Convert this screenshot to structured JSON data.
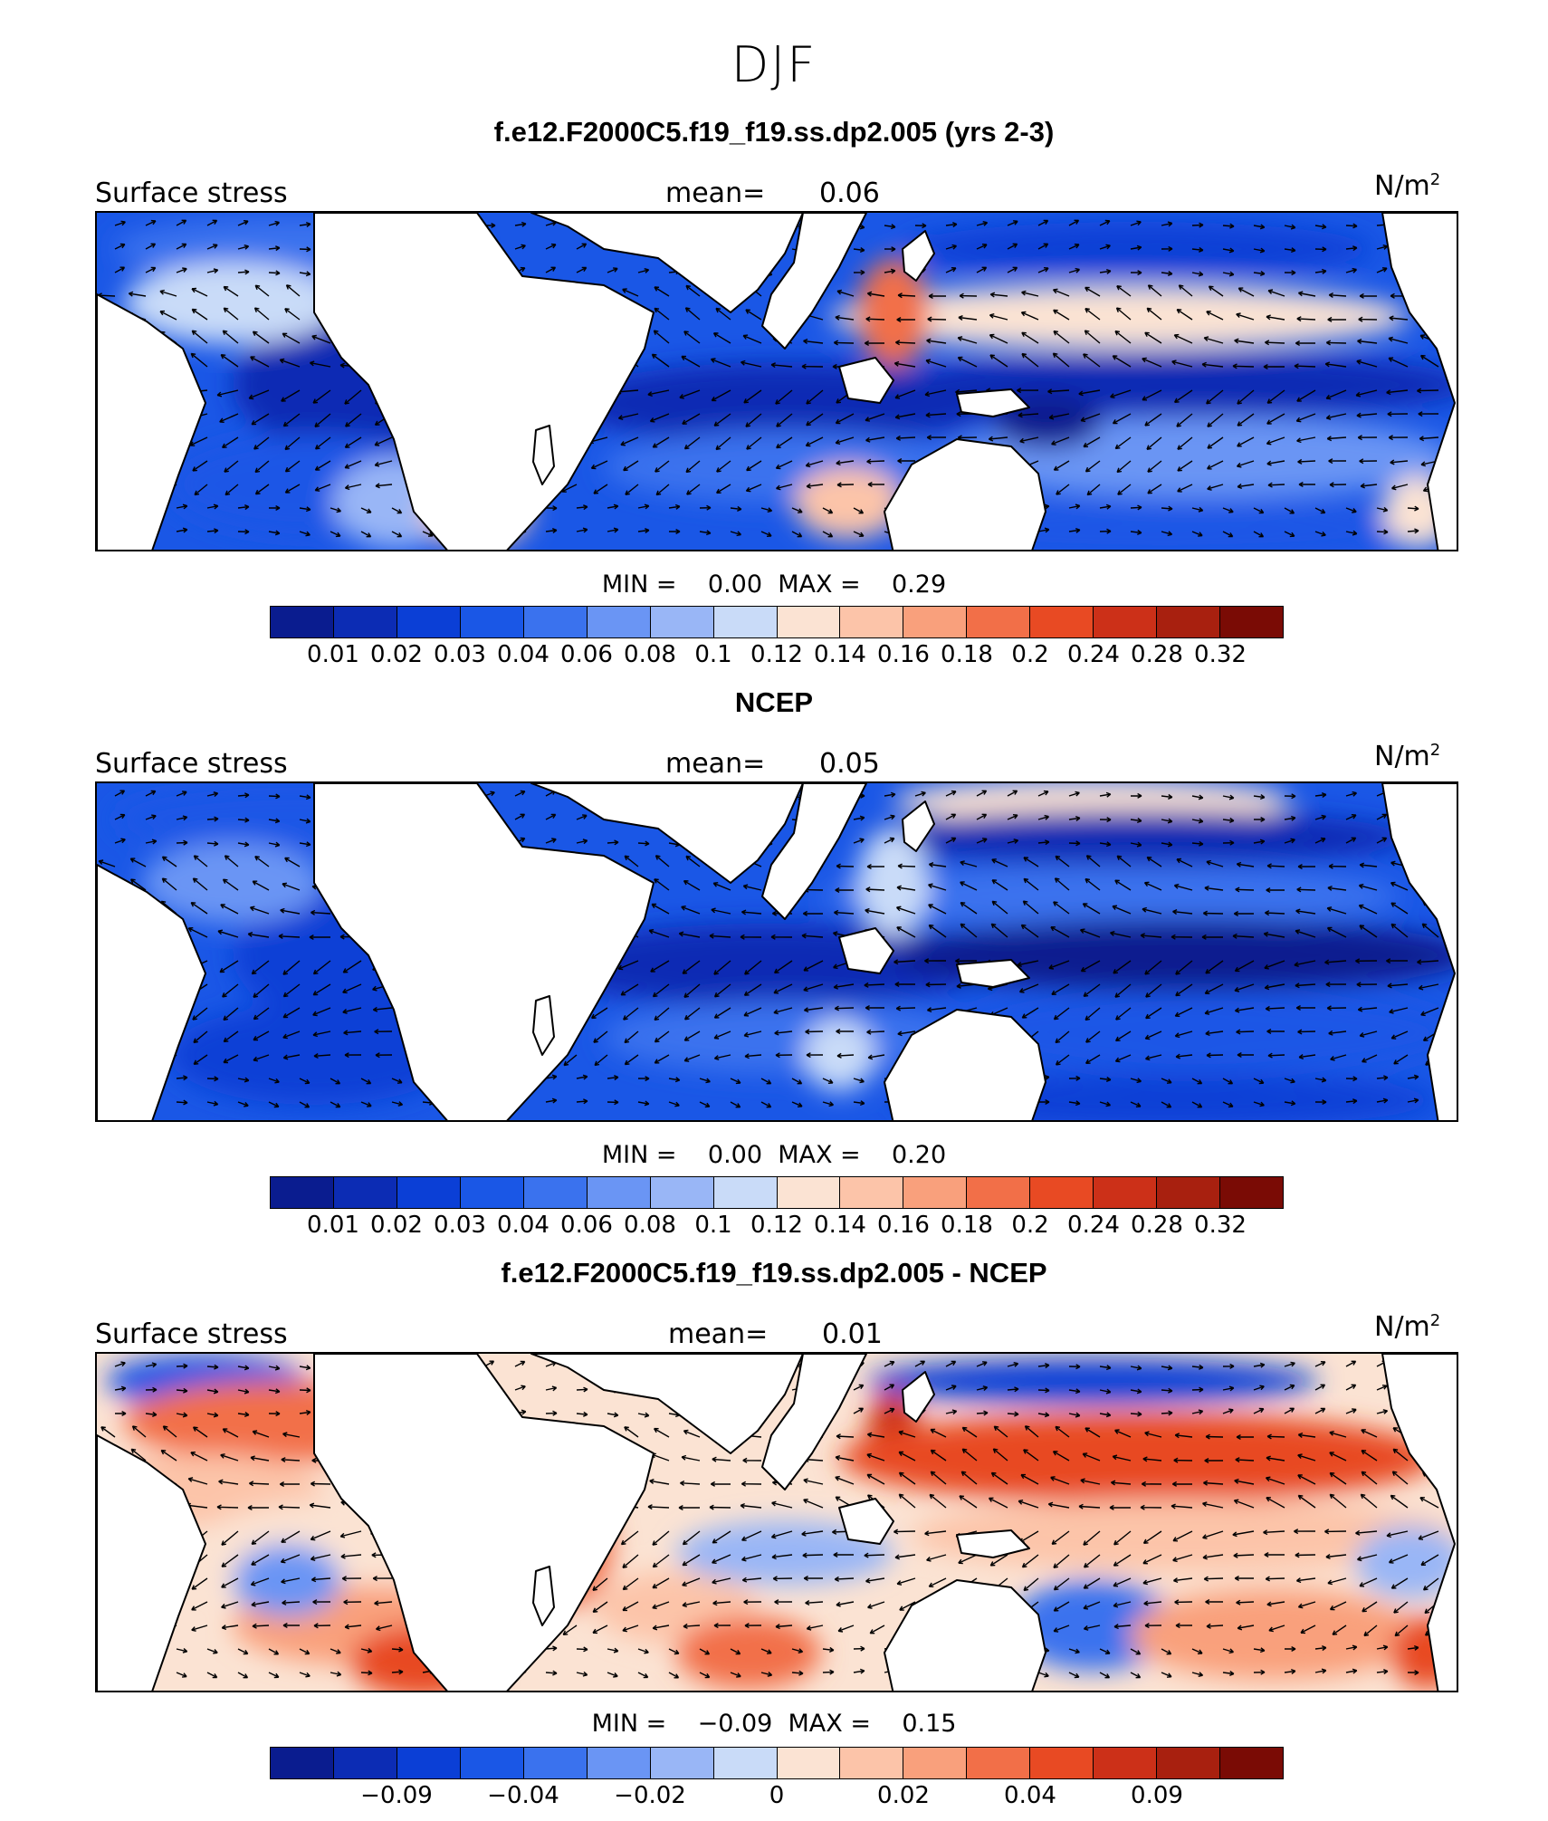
{
  "figure": {
    "title": "DJF"
  },
  "palette": {
    "blue_red_16": [
      "#0a1c8f",
      "#0c2cb4",
      "#0b3fd6",
      "#1a57e6",
      "#3a72ee",
      "#6a95f4",
      "#99b6f6",
      "#c9dbf8",
      "#fbe3d3",
      "#fcc4a9",
      "#f9a07c",
      "#f26f48",
      "#e84a23",
      "#cc3018",
      "#a8200f",
      "#7a0b05"
    ]
  },
  "panels": [
    {
      "title": "f.e12.F2000C5.f19_f19.ss.dp2.005 (yrs 2-3)",
      "variable_label": "Surface stress",
      "mean_label": "mean=",
      "mean_value": "0.06",
      "units_base": "N/m",
      "units_exp": "2",
      "min_label": "MIN =",
      "min_value": "0.00",
      "max_label": "MAX =",
      "max_value": "0.29",
      "tick_labels": [
        "0.01",
        "0.02",
        "0.03",
        "0.04",
        "0.06",
        "0.08",
        "0.1",
        "0.12",
        "0.14",
        "0.16",
        "0.18",
        "0.2",
        "0.24",
        "0.28",
        "0.32"
      ],
      "field_style": "magnitude_model"
    },
    {
      "title": "NCEP",
      "variable_label": "Surface stress",
      "mean_label": "mean=",
      "mean_value": "0.05",
      "units_base": "N/m",
      "units_exp": "2",
      "min_label": "MIN =",
      "min_value": "0.00",
      "max_label": "MAX =",
      "max_value": "0.20",
      "tick_labels": [
        "0.01",
        "0.02",
        "0.03",
        "0.04",
        "0.06",
        "0.08",
        "0.1",
        "0.12",
        "0.14",
        "0.16",
        "0.18",
        "0.2",
        "0.24",
        "0.28",
        "0.32"
      ],
      "field_style": "magnitude_obs"
    },
    {
      "title": "f.e12.F2000C5.f19_f19.ss.dp2.005 - NCEP",
      "variable_label": "Surface stress",
      "mean_label": "mean=",
      "mean_value": "0.01",
      "units_base": "N/m",
      "units_exp": "2",
      "min_label": "MIN =",
      "min_value": "−0.09",
      "max_label": "MAX =",
      "max_value": "0.15",
      "tick_labels": [
        "",
        "−0.09",
        "",
        "−0.04",
        "",
        "−0.02",
        "",
        "0",
        "",
        "0.02",
        "",
        "0.04",
        "",
        "0.09",
        ""
      ],
      "field_style": "difference"
    }
  ]
}
